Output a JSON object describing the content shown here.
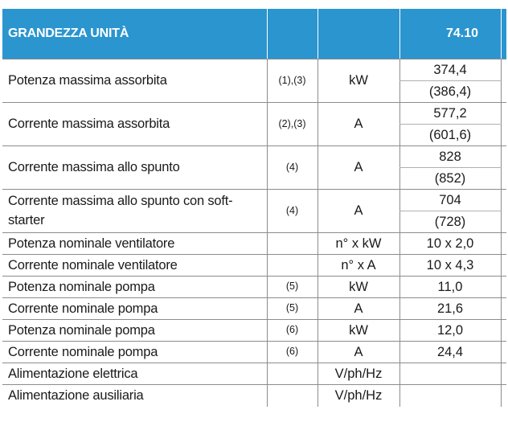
{
  "header": {
    "title": "GRANDEZZA UNITÀ",
    "model": "74.10"
  },
  "rows": [
    {
      "label": "Potenza massima assorbita",
      "ref": "(1),(3)",
      "unit": "kW",
      "value": "374,4",
      "value2": "(386,4)"
    },
    {
      "label": "Corrente massima assorbita",
      "ref": "(2),(3)",
      "unit": "A",
      "value": "577,2",
      "value2": "(601,6)"
    },
    {
      "label": "Corrente massima allo spunto",
      "ref": "(4)",
      "unit": "A",
      "value": "828",
      "value2": "(852)"
    },
    {
      "label": "Corrente massima allo spunto con soft-starter",
      "ref": "(4)",
      "unit": "A",
      "value": "704",
      "value2": "(728)"
    },
    {
      "label": "Potenza nominale ventilatore",
      "ref": "",
      "unit": "n° x kW",
      "value": "10 x 2,0"
    },
    {
      "label": "Corrente nominale ventilatore",
      "ref": "",
      "unit": "n° x A",
      "value": "10 x 4,3"
    },
    {
      "label": "Potenza nominale pompa",
      "ref": "(5)",
      "unit": "kW",
      "value": "11,0"
    },
    {
      "label": "Corrente nominale pompa",
      "ref": "(5)",
      "unit": "A",
      "value": "21,6"
    },
    {
      "label": "Potenza nominale pompa",
      "ref": "(6)",
      "unit": "kW",
      "value": "12,0"
    },
    {
      "label": "Corrente nominale pompa",
      "ref": "(6)",
      "unit": "A",
      "value": "24,4"
    },
    {
      "label": "Alimentazione elettrica",
      "ref": "",
      "unit": "V/ph/Hz",
      "value": ""
    },
    {
      "label": "Alimentazione ausiliaria",
      "ref": "",
      "unit": "V/ph/Hz",
      "value": ""
    }
  ]
}
